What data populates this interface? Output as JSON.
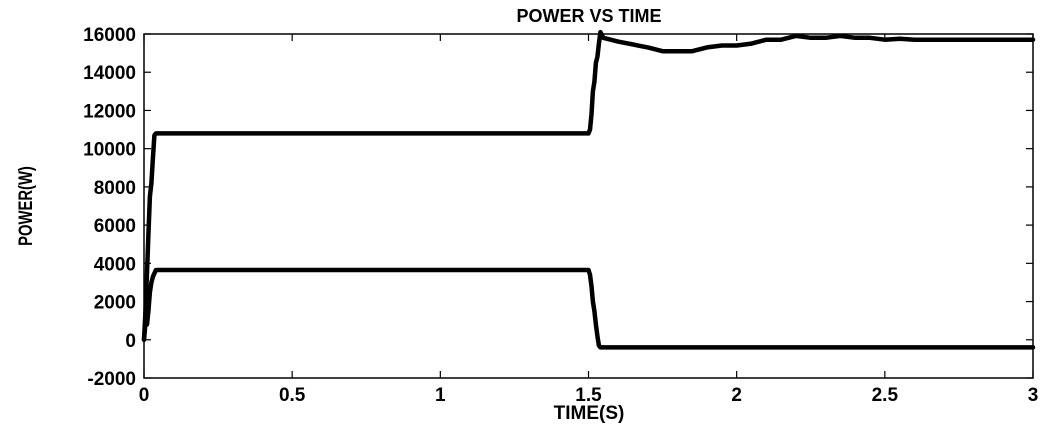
{
  "chart_data": {
    "type": "line",
    "title": "POWER VS TIME",
    "xlabel": "TIME(S)",
    "ylabel": "POWER(W)",
    "xlim": [
      0,
      3
    ],
    "ylim": [
      -2000,
      16000
    ],
    "xticks": [
      0,
      0.5,
      1,
      1.5,
      2,
      2.5,
      3
    ],
    "xtick_labels": [
      "0",
      "0.5",
      "1",
      "1.5",
      "2",
      "2.5",
      "3"
    ],
    "yticks": [
      -2000,
      0,
      2000,
      4000,
      6000,
      8000,
      10000,
      12000,
      14000,
      16000
    ],
    "ytick_labels": [
      "-2000",
      "0",
      "2000",
      "4000",
      "6000",
      "8000",
      "10000",
      "12000",
      "14000",
      "16000"
    ],
    "grid": false,
    "series": [
      {
        "x": [
          0,
          0.005,
          0.01,
          0.015,
          0.02,
          0.025,
          0.03,
          0.035,
          0.04,
          0.05,
          1.0,
          1.49,
          1.5,
          1.505,
          1.51,
          1.515,
          1.52,
          1.525,
          1.53,
          1.535,
          1.54,
          1.55,
          1.6,
          1.7,
          1.75,
          1.8,
          1.85,
          1.9,
          1.95,
          2.0,
          2.05,
          2.1,
          2.15,
          2.2,
          2.25,
          2.3,
          2.35,
          2.4,
          2.45,
          2.5,
          2.55,
          2.6,
          2.7,
          2.8,
          2.9,
          3.0
        ],
        "y": [
          0,
          1500,
          3500,
          5500,
          7500,
          8200,
          9500,
          10700,
          10800,
          10800,
          10800,
          10800,
          10800,
          11000,
          11800,
          13000,
          13500,
          14500,
          14800,
          15500,
          16100,
          15800,
          15600,
          15300,
          15100,
          15100,
          15100,
          15300,
          15400,
          15400,
          15500,
          15700,
          15700,
          15900,
          15800,
          15800,
          15900,
          15800,
          15800,
          15700,
          15750,
          15700,
          15700,
          15700,
          15700,
          15700
        ]
      },
      {
        "x": [
          0,
          0.005,
          0.01,
          0.015,
          0.02,
          0.025,
          0.03,
          0.04,
          0.05,
          1.0,
          1.49,
          1.5,
          1.505,
          1.51,
          1.515,
          1.52,
          1.525,
          1.53,
          1.535,
          1.54,
          1.6,
          1.8,
          2.0,
          2.2,
          2.4,
          2.6,
          2.8,
          3.0
        ],
        "y": [
          0,
          900,
          800,
          1500,
          2500,
          3000,
          3300,
          3650,
          3650,
          3650,
          3650,
          3650,
          3400,
          2800,
          2000,
          1500,
          800,
          200,
          -300,
          -400,
          -400,
          -400,
          -400,
          -400,
          -400,
          -400,
          -400,
          -400
        ]
      }
    ]
  }
}
